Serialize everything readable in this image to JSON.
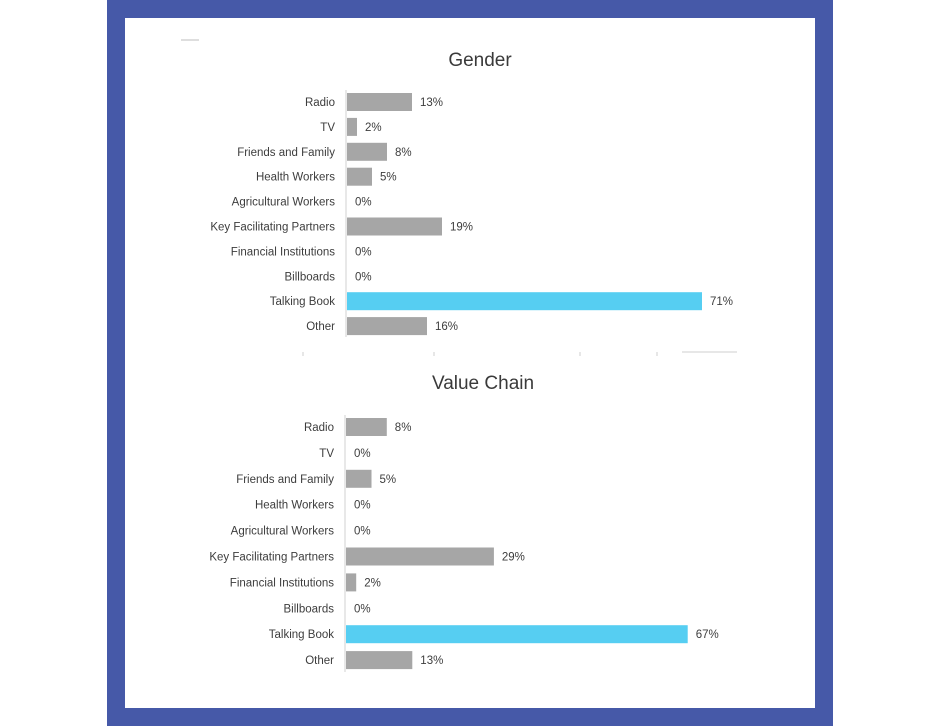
{
  "colors": {
    "frame": "#4659a8",
    "bar_default": "#a6a6a6",
    "bar_highlight": "#56cef2",
    "text": "#3d3d3d"
  },
  "chart_data": [
    {
      "type": "bar",
      "orientation": "horizontal",
      "title": "Gender",
      "categories": [
        "Radio",
        "TV",
        "Friends and Family",
        "Health Workers",
        "Agricultural Workers",
        "Key Facilitating Partners",
        "Financial Institutions",
        "Billboards",
        "Talking Book",
        "Other"
      ],
      "values": [
        13,
        2,
        8,
        5,
        0,
        19,
        0,
        0,
        71,
        16
      ],
      "value_labels": [
        "13%",
        "2%",
        "8%",
        "5%",
        "0%",
        "19%",
        "0%",
        "0%",
        "71%",
        "16%"
      ],
      "highlight": "Talking Book",
      "xlim": [
        0,
        80
      ],
      "grid": false,
      "legend": "none"
    },
    {
      "type": "bar",
      "orientation": "horizontal",
      "title": "Value Chain",
      "categories": [
        "Radio",
        "TV",
        "Friends and Family",
        "Health Workers",
        "Agricultural Workers",
        "Key Facilitating Partners",
        "Financial Institutions",
        "Billboards",
        "Talking Book",
        "Other"
      ],
      "values": [
        8,
        0,
        5,
        0,
        0,
        29,
        2,
        0,
        67,
        13
      ],
      "value_labels": [
        "8%",
        "0%",
        "5%",
        "0%",
        "0%",
        "29%",
        "2%",
        "0%",
        "67%",
        "13%"
      ],
      "highlight": "Talking Book",
      "xlim": [
        0,
        80
      ],
      "grid": false,
      "legend": "none"
    }
  ]
}
